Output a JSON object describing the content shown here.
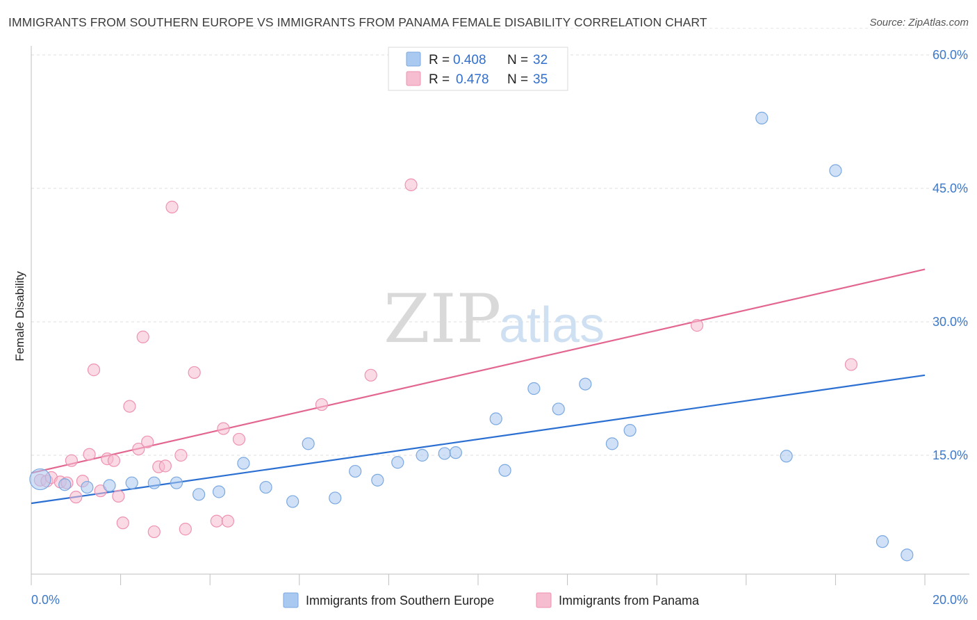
{
  "header": {
    "title": "IMMIGRANTS FROM SOUTHERN EUROPE VS IMMIGRANTS FROM PANAMA FEMALE DISABILITY CORRELATION CHART",
    "source": "Source: ZipAtlas.com"
  },
  "legend": {
    "r_label": "R =",
    "n_label": "N =",
    "series1": {
      "r": "0.408",
      "n": "32"
    },
    "series2": {
      "r": "0.478",
      "n": "35"
    }
  },
  "watermark": {
    "zip": "ZIP",
    "atlas": "atlas"
  },
  "colors": {
    "blue_fill": "#aac9f0",
    "blue_stroke": "#7aa8e0",
    "blue_line": "#2a6fd1",
    "pink_fill": "#f6bcd0",
    "pink_stroke": "#ee92b2",
    "pink_line": "#e2668f",
    "tick_text": "#3d78c9"
  },
  "chart_data": {
    "type": "scatter",
    "title": "IMMIGRANTS FROM SOUTHERN EUROPE VS IMMIGRANTS FROM PANAMA FEMALE DISABILITY CORRELATION CHART",
    "xlabel": "",
    "ylabel": "Female Disability",
    "xlim": [
      0,
      20
    ],
    "ylim": [
      0,
      63
    ],
    "x_tick_labels": [
      "0.0%",
      "20.0%"
    ],
    "y_ticks": [
      15,
      30,
      45,
      60
    ],
    "y_tick_labels": [
      "15.0%",
      "30.0%",
      "45.0%",
      "60.0%"
    ],
    "grid": true,
    "legend_position": "top-center",
    "series": [
      {
        "name": "Immigrants from Southern Europe",
        "color": "blue",
        "r": 0.408,
        "n": 32,
        "trend": {
          "x": [
            0,
            20
          ],
          "y": [
            9.6,
            24.0
          ]
        },
        "points": [
          {
            "x": 0.2,
            "y": 12.3,
            "big": true
          },
          {
            "x": 0.75,
            "y": 11.7
          },
          {
            "x": 1.25,
            "y": 11.4
          },
          {
            "x": 1.75,
            "y": 11.6
          },
          {
            "x": 2.25,
            "y": 11.9
          },
          {
            "x": 2.75,
            "y": 11.9
          },
          {
            "x": 3.25,
            "y": 11.9
          },
          {
            "x": 3.75,
            "y": 10.6
          },
          {
            "x": 4.2,
            "y": 10.9
          },
          {
            "x": 4.75,
            "y": 14.1
          },
          {
            "x": 5.25,
            "y": 11.4
          },
          {
            "x": 5.85,
            "y": 9.8
          },
          {
            "x": 6.2,
            "y": 16.3
          },
          {
            "x": 6.8,
            "y": 10.2
          },
          {
            "x": 7.25,
            "y": 13.2
          },
          {
            "x": 7.75,
            "y": 12.2
          },
          {
            "x": 8.2,
            "y": 14.2
          },
          {
            "x": 8.75,
            "y": 15.0
          },
          {
            "x": 9.25,
            "y": 15.2
          },
          {
            "x": 9.5,
            "y": 15.3
          },
          {
            "x": 10.4,
            "y": 19.1
          },
          {
            "x": 10.6,
            "y": 13.3
          },
          {
            "x": 11.25,
            "y": 22.5
          },
          {
            "x": 11.8,
            "y": 20.2
          },
          {
            "x": 12.4,
            "y": 23.0
          },
          {
            "x": 13.0,
            "y": 16.3
          },
          {
            "x": 13.4,
            "y": 17.8
          },
          {
            "x": 16.35,
            "y": 52.9
          },
          {
            "x": 16.9,
            "y": 14.9
          },
          {
            "x": 18.0,
            "y": 47.0
          },
          {
            "x": 19.05,
            "y": 5.3
          },
          {
            "x": 19.6,
            "y": 3.8
          }
        ]
      },
      {
        "name": "Immigrants from Panama",
        "color": "pink",
        "r": 0.478,
        "n": 35,
        "trend": {
          "x": [
            0,
            20
          ],
          "y": [
            13.0,
            35.9
          ]
        },
        "points": [
          {
            "x": 0.2,
            "y": 12.2
          },
          {
            "x": 0.35,
            "y": 12.1
          },
          {
            "x": 0.45,
            "y": 12.5
          },
          {
            "x": 0.65,
            "y": 12.0
          },
          {
            "x": 0.8,
            "y": 11.9
          },
          {
            "x": 0.9,
            "y": 14.4
          },
          {
            "x": 1.0,
            "y": 10.3
          },
          {
            "x": 1.15,
            "y": 12.1
          },
          {
            "x": 1.3,
            "y": 15.1
          },
          {
            "x": 1.4,
            "y": 24.6
          },
          {
            "x": 1.55,
            "y": 11.0
          },
          {
            "x": 1.7,
            "y": 14.6
          },
          {
            "x": 1.85,
            "y": 14.4
          },
          {
            "x": 1.95,
            "y": 10.4
          },
          {
            "x": 2.05,
            "y": 7.4
          },
          {
            "x": 2.2,
            "y": 20.5
          },
          {
            "x": 2.4,
            "y": 15.7
          },
          {
            "x": 2.5,
            "y": 28.3
          },
          {
            "x": 2.6,
            "y": 16.5
          },
          {
            "x": 2.75,
            "y": 6.4
          },
          {
            "x": 2.85,
            "y": 13.7
          },
          {
            "x": 3.0,
            "y": 13.8
          },
          {
            "x": 3.15,
            "y": 42.9
          },
          {
            "x": 3.35,
            "y": 15.0
          },
          {
            "x": 3.45,
            "y": 6.7
          },
          {
            "x": 3.65,
            "y": 24.3
          },
          {
            "x": 4.15,
            "y": 7.6
          },
          {
            "x": 4.3,
            "y": 18.0
          },
          {
            "x": 4.4,
            "y": 7.6
          },
          {
            "x": 4.65,
            "y": 16.8
          },
          {
            "x": 6.5,
            "y": 20.7
          },
          {
            "x": 7.6,
            "y": 24.0
          },
          {
            "x": 8.5,
            "y": 45.4
          },
          {
            "x": 14.9,
            "y": 29.6
          },
          {
            "x": 18.35,
            "y": 25.2
          }
        ]
      }
    ]
  },
  "bottom_legend": {
    "series1_label": "Immigrants from Southern Europe",
    "series2_label": "Immigrants from Panama"
  }
}
